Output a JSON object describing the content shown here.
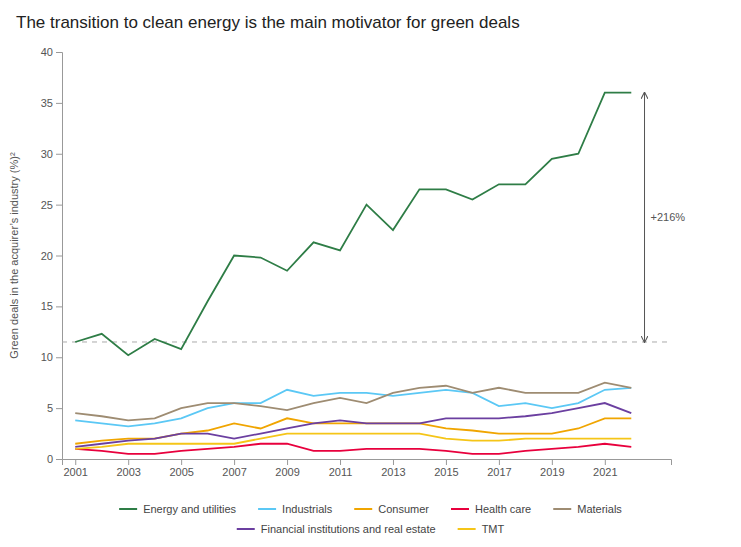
{
  "chart_data": {
    "type": "line",
    "title": "The transition to clean energy is the main motivator for green deals",
    "y_label": "Green deals in the acquirer’s industry (%)²",
    "x": [
      2001,
      2002,
      2003,
      2004,
      2005,
      2006,
      2007,
      2008,
      2009,
      2010,
      2011,
      2012,
      2013,
      2014,
      2015,
      2016,
      2017,
      2018,
      2019,
      2020,
      2021,
      2022
    ],
    "series": [
      {
        "name": "Energy and utilities",
        "color": "#2e7d46",
        "annotation": "+216%",
        "values": [
          11.5,
          12.3,
          10.2,
          11.8,
          10.8,
          15.5,
          20.0,
          19.8,
          18.5,
          21.3,
          20.5,
          25.0,
          22.5,
          26.5,
          26.5,
          25.5,
          27.0,
          27.0,
          29.5,
          30.0,
          36.0,
          36.0
        ]
      },
      {
        "name": "Industrials",
        "color": "#5bc8f5",
        "values": [
          3.8,
          3.5,
          3.2,
          3.5,
          4.0,
          5.0,
          5.5,
          5.5,
          6.8,
          6.2,
          6.5,
          6.5,
          6.2,
          6.5,
          6.8,
          6.5,
          5.2,
          5.5,
          5.0,
          5.5,
          6.8,
          7.0
        ]
      },
      {
        "name": "Consumer",
        "color": "#f0a500",
        "values": [
          1.5,
          1.8,
          2.0,
          2.0,
          2.5,
          2.8,
          3.5,
          3.0,
          4.0,
          3.5,
          3.5,
          3.5,
          3.5,
          3.5,
          3.0,
          2.8,
          2.5,
          2.5,
          2.5,
          3.0,
          4.0,
          4.0
        ]
      },
      {
        "name": "Health care",
        "color": "#e8003d",
        "values": [
          1.0,
          0.8,
          0.5,
          0.5,
          0.8,
          1.0,
          1.2,
          1.5,
          1.5,
          0.8,
          0.8,
          1.0,
          1.0,
          1.0,
          0.8,
          0.5,
          0.5,
          0.8,
          1.0,
          1.2,
          1.5,
          1.2
        ]
      },
      {
        "name": "Materials",
        "color": "#9e8c72",
        "values": [
          4.5,
          4.2,
          3.8,
          4.0,
          5.0,
          5.5,
          5.5,
          5.2,
          4.8,
          5.5,
          6.0,
          5.5,
          6.5,
          7.0,
          7.2,
          6.5,
          7.0,
          6.5,
          6.5,
          6.5,
          7.5,
          7.0
        ]
      },
      {
        "name": "Financial institutions and real estate",
        "color": "#6b3fa0",
        "values": [
          1.2,
          1.5,
          1.8,
          2.0,
          2.5,
          2.5,
          2.0,
          2.5,
          3.0,
          3.5,
          3.8,
          3.5,
          3.5,
          3.5,
          4.0,
          4.0,
          4.0,
          4.2,
          4.5,
          5.0,
          5.5,
          4.5
        ]
      },
      {
        "name": "TMT",
        "color": "#f5c518",
        "values": [
          1.0,
          1.2,
          1.5,
          1.5,
          1.5,
          1.5,
          1.5,
          2.0,
          2.5,
          2.5,
          2.5,
          2.5,
          2.5,
          2.5,
          2.0,
          1.8,
          1.8,
          2.0,
          2.0,
          2.0,
          2.0,
          2.0
        ]
      }
    ],
    "reference_line": {
      "y": 11.5,
      "line_style": "dashed"
    },
    "xlim": [
      2000.5,
      2023.5
    ],
    "xticks": [
      2001,
      2003,
      2005,
      2007,
      2009,
      2011,
      2013,
      2015,
      2017,
      2019,
      2021
    ],
    "ylim": [
      0,
      40
    ],
    "yticks": [
      0,
      5,
      10,
      15,
      20,
      25,
      30,
      35,
      40
    ],
    "grid": false,
    "legend": "bottom"
  }
}
